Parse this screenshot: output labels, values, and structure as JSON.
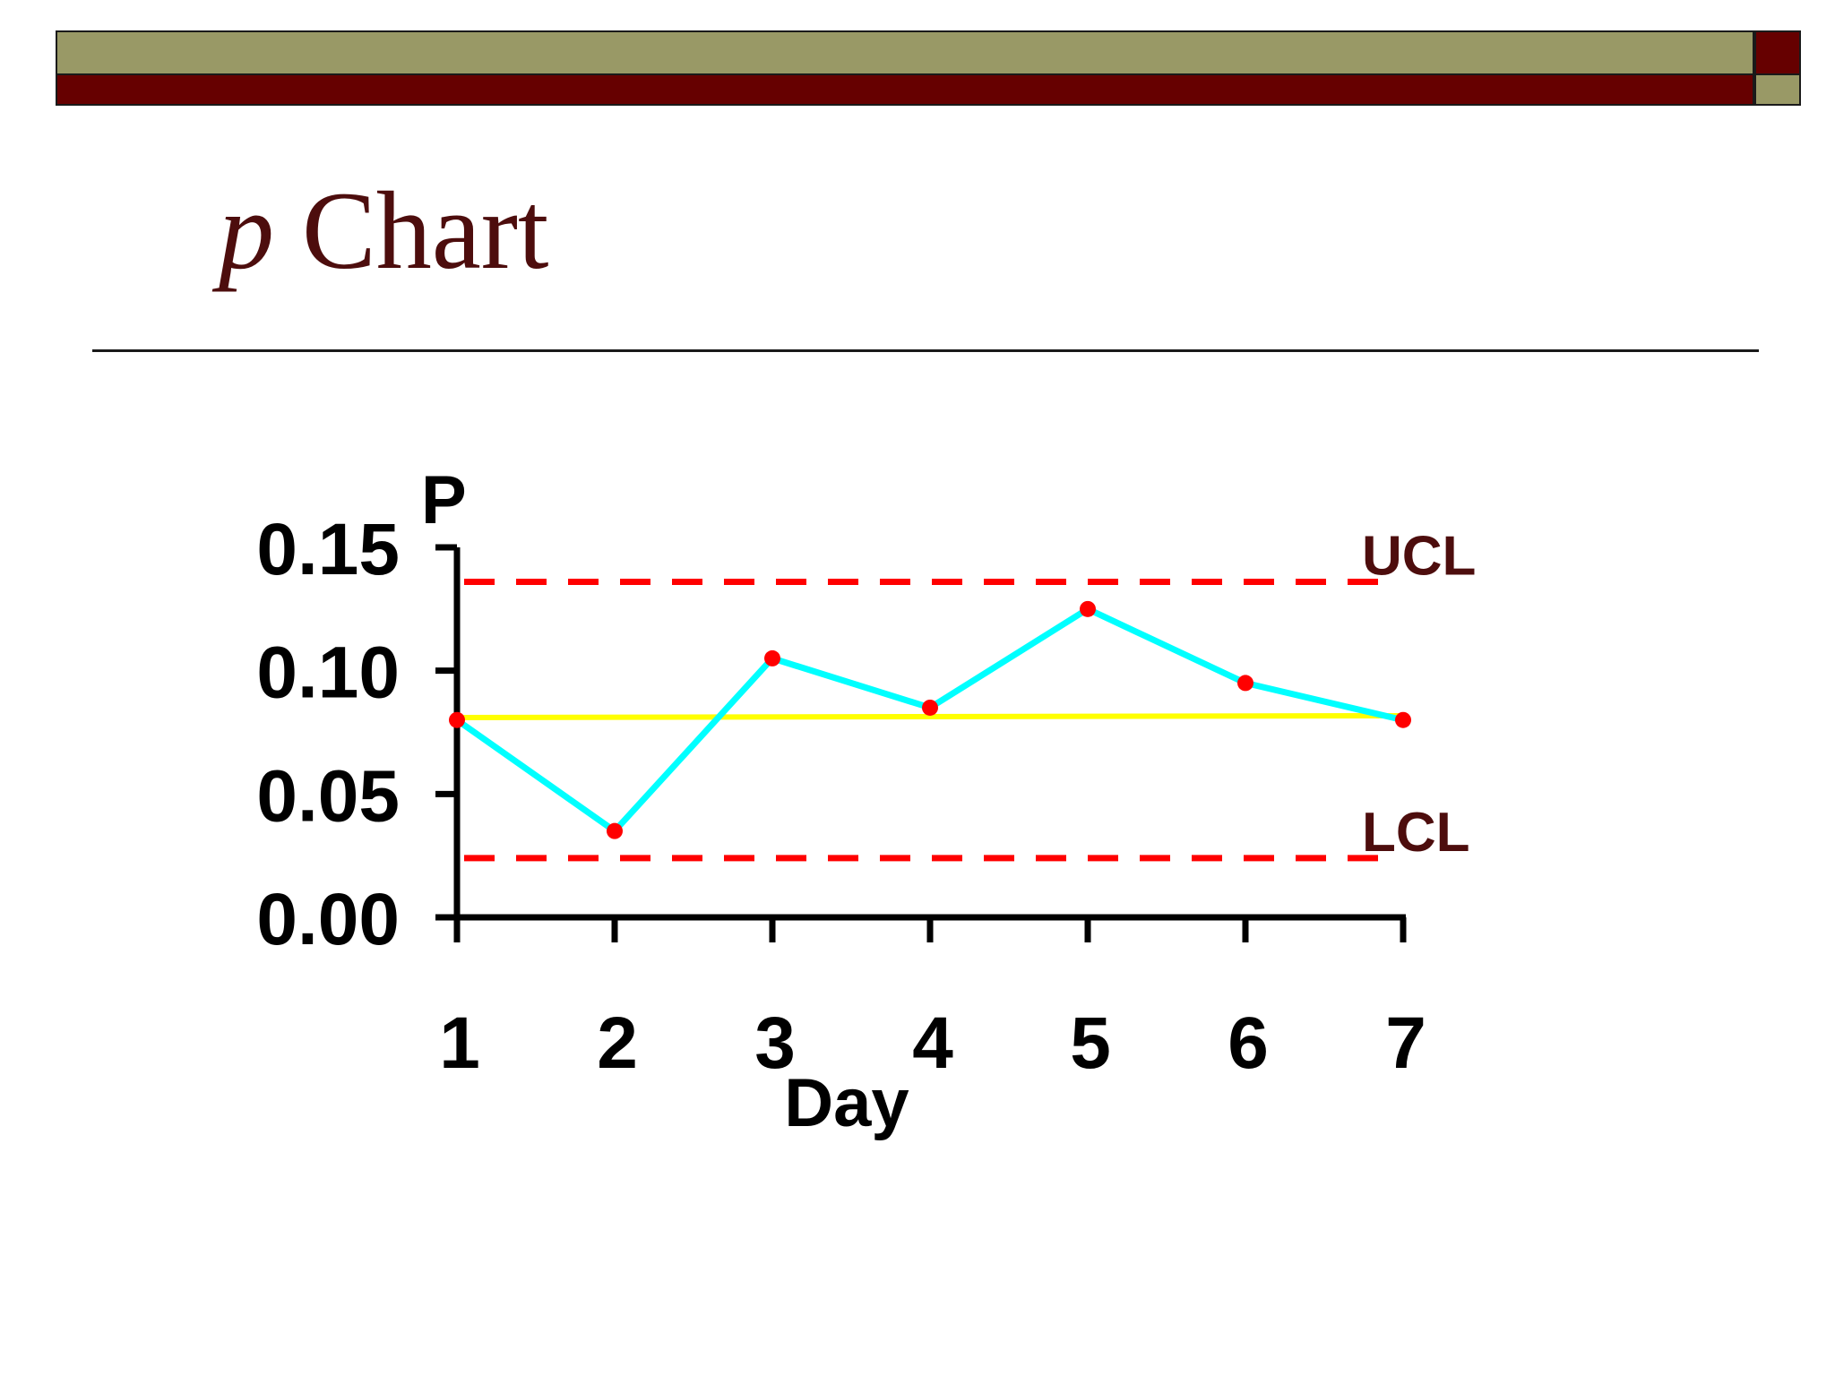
{
  "slide": {
    "title_italic": "p",
    "title_rest": " Chart",
    "colors": {
      "band_olive": "#999966",
      "band_maroon": "#660000",
      "title": "#4d0d0d"
    }
  },
  "chart_data": {
    "type": "line",
    "title": "",
    "xlabel": "Day",
    "ylabel": "P",
    "x": [
      1,
      2,
      3,
      4,
      5,
      6,
      7
    ],
    "categories": [
      "1",
      "2",
      "3",
      "4",
      "5",
      "6",
      "7"
    ],
    "series": [
      {
        "values": [
          0.08,
          0.035,
          0.105,
          0.085,
          0.125,
          0.095,
          0.08
        ],
        "color": "#00ffff",
        "marker_color": "#ff0000"
      }
    ],
    "center_line": {
      "value": 0.081,
      "color": "#ffff00"
    },
    "control_limits": [
      {
        "label": "UCL",
        "value": 0.136,
        "color": "#ff0000",
        "style": "dashed"
      },
      {
        "label": "LCL",
        "value": 0.024,
        "color": "#ff0000",
        "style": "dashed"
      }
    ],
    "yticks": [
      0.0,
      0.05,
      0.1,
      0.15
    ],
    "ytick_labels": [
      "0.00",
      "0.05",
      "0.10",
      "0.15"
    ],
    "ylim": [
      0,
      0.15
    ],
    "grid": false,
    "legend": "none"
  }
}
